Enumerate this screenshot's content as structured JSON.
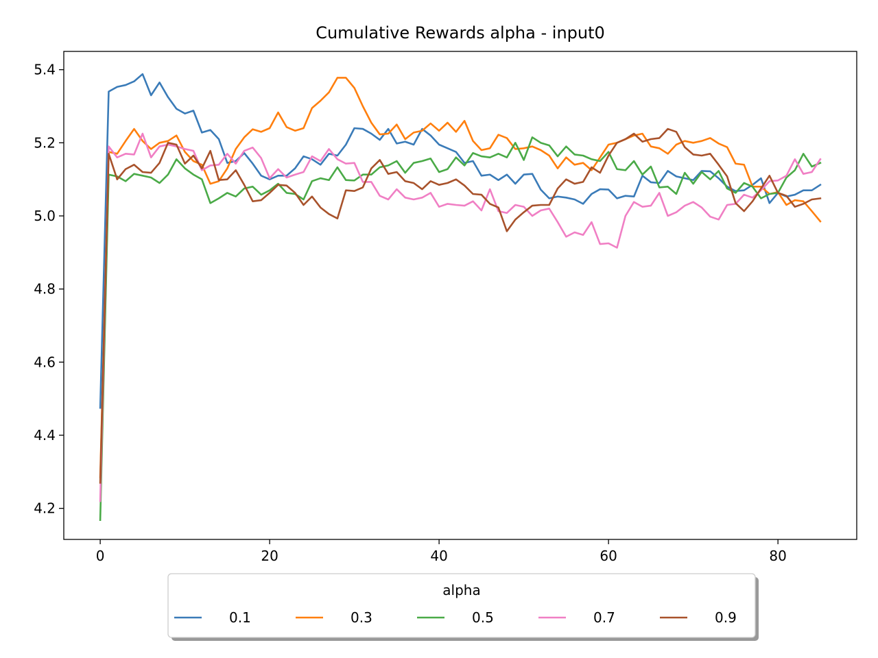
{
  "chart_data": {
    "type": "line",
    "title": "Cumulative Rewards alpha - input0",
    "xlabel": "",
    "ylabel": "",
    "xlim": [
      -4.3,
      89.3
    ],
    "ylim": [
      4.115,
      5.45
    ],
    "x_ticks": [
      0,
      20,
      40,
      60,
      80
    ],
    "y_ticks": [
      4.2,
      4.4,
      4.6,
      4.8,
      5.0,
      5.2,
      5.4
    ],
    "x_tick_labels": [
      "0",
      "20",
      "40",
      "60",
      "80"
    ],
    "y_tick_labels": [
      "4.2",
      "4.4",
      "4.6",
      "4.8",
      "5.0",
      "5.2",
      "5.4"
    ],
    "grid": false,
    "legend": {
      "title": "alpha",
      "placement": "bottom-center",
      "columns": 5
    },
    "x": [
      0,
      1,
      2,
      3,
      4,
      5,
      6,
      7,
      8,
      9,
      10,
      11,
      12,
      13,
      14,
      15,
      16,
      17,
      18,
      19,
      20,
      21,
      22,
      23,
      24,
      25,
      26,
      27,
      28,
      29,
      30,
      31,
      32,
      33,
      34,
      35,
      36,
      37,
      38,
      39,
      40,
      41,
      42,
      43,
      44,
      45,
      46,
      47,
      48,
      49,
      50,
      51,
      52,
      53,
      54,
      55,
      56,
      57,
      58,
      59,
      60,
      61,
      62,
      63,
      64,
      65,
      66,
      67,
      68,
      69,
      70,
      71,
      72,
      73,
      74,
      75,
      76,
      77,
      78,
      79,
      80,
      81,
      82,
      83,
      84,
      85
    ],
    "series": [
      {
        "name": "0.1",
        "color": "#3a7bb8",
        "values": [
          4.475,
          5.34,
          5.353,
          5.358,
          5.368,
          5.388,
          5.33,
          5.365,
          5.325,
          5.293,
          5.28,
          5.288,
          5.228,
          5.235,
          5.21,
          5.145,
          5.15,
          5.172,
          5.143,
          5.11,
          5.1,
          5.11,
          5.11,
          5.13,
          5.163,
          5.155,
          5.14,
          5.17,
          5.165,
          5.195,
          5.24,
          5.238,
          5.225,
          5.208,
          5.238,
          5.198,
          5.203,
          5.195,
          5.238,
          5.22,
          5.195,
          5.185,
          5.175,
          5.145,
          5.15,
          5.11,
          5.113,
          5.098,
          5.113,
          5.088,
          5.113,
          5.115,
          5.072,
          5.048,
          5.053,
          5.05,
          5.045,
          5.033,
          5.06,
          5.073,
          5.072,
          5.048,
          5.055,
          5.053,
          5.11,
          5.092,
          5.09,
          5.123,
          5.108,
          5.103,
          5.098,
          5.123,
          5.122,
          5.103,
          5.08,
          5.068,
          5.07,
          5.085,
          5.103,
          5.035,
          5.063,
          5.053,
          5.058,
          5.07,
          5.07,
          5.085
        ]
      },
      {
        "name": "0.3",
        "color": "#ff7f0e",
        "values": [
          4.285,
          5.175,
          5.17,
          5.205,
          5.238,
          5.205,
          5.183,
          5.2,
          5.205,
          5.22,
          5.175,
          5.15,
          5.14,
          5.088,
          5.095,
          5.13,
          5.183,
          5.215,
          5.237,
          5.23,
          5.24,
          5.283,
          5.243,
          5.233,
          5.24,
          5.295,
          5.315,
          5.338,
          5.378,
          5.378,
          5.35,
          5.3,
          5.255,
          5.223,
          5.225,
          5.25,
          5.21,
          5.228,
          5.233,
          5.253,
          5.233,
          5.255,
          5.23,
          5.26,
          5.205,
          5.18,
          5.185,
          5.222,
          5.213,
          5.183,
          5.185,
          5.19,
          5.18,
          5.165,
          5.13,
          5.16,
          5.14,
          5.145,
          5.125,
          5.16,
          5.195,
          5.2,
          5.21,
          5.22,
          5.225,
          5.19,
          5.185,
          5.17,
          5.195,
          5.205,
          5.2,
          5.205,
          5.213,
          5.198,
          5.188,
          5.143,
          5.14,
          5.08,
          5.08,
          5.06,
          5.065,
          5.03,
          5.043,
          5.04,
          5.013,
          4.985
        ]
      },
      {
        "name": "0.5",
        "color": "#4aaa47",
        "values": [
          4.168,
          5.113,
          5.108,
          5.095,
          5.115,
          5.11,
          5.105,
          5.09,
          5.113,
          5.155,
          5.13,
          5.113,
          5.1,
          5.035,
          5.048,
          5.063,
          5.053,
          5.075,
          5.08,
          5.058,
          5.07,
          5.088,
          5.063,
          5.06,
          5.045,
          5.095,
          5.103,
          5.098,
          5.133,
          5.098,
          5.097,
          5.113,
          5.113,
          5.133,
          5.138,
          5.15,
          5.118,
          5.145,
          5.15,
          5.157,
          5.12,
          5.128,
          5.16,
          5.138,
          5.172,
          5.163,
          5.16,
          5.17,
          5.16,
          5.2,
          5.153,
          5.215,
          5.2,
          5.193,
          5.163,
          5.19,
          5.168,
          5.165,
          5.155,
          5.15,
          5.175,
          5.128,
          5.125,
          5.15,
          5.113,
          5.135,
          5.078,
          5.08,
          5.06,
          5.118,
          5.088,
          5.12,
          5.1,
          5.123,
          5.075,
          5.063,
          5.09,
          5.08,
          5.048,
          5.06,
          5.063,
          5.105,
          5.125,
          5.17,
          5.135,
          5.145
        ]
      },
      {
        "name": "0.7",
        "color": "#f07fc4",
        "values": [
          4.22,
          5.19,
          5.16,
          5.17,
          5.168,
          5.225,
          5.16,
          5.19,
          5.195,
          5.19,
          5.183,
          5.178,
          5.125,
          5.138,
          5.14,
          5.17,
          5.143,
          5.178,
          5.187,
          5.158,
          5.103,
          5.128,
          5.105,
          5.113,
          5.12,
          5.163,
          5.15,
          5.183,
          5.155,
          5.143,
          5.145,
          5.093,
          5.093,
          5.055,
          5.045,
          5.073,
          5.05,
          5.045,
          5.05,
          5.063,
          5.025,
          5.033,
          5.03,
          5.028,
          5.04,
          5.015,
          5.073,
          5.013,
          5.008,
          5.03,
          5.025,
          5.0,
          5.015,
          5.02,
          4.983,
          4.943,
          4.955,
          4.948,
          4.983,
          4.923,
          4.925,
          4.913,
          5.0,
          5.038,
          5.025,
          5.028,
          5.063,
          5.0,
          5.01,
          5.028,
          5.038,
          5.023,
          4.998,
          4.99,
          5.03,
          5.033,
          5.058,
          5.05,
          5.07,
          5.095,
          5.097,
          5.11,
          5.155,
          5.115,
          5.12,
          5.155
        ]
      },
      {
        "name": "0.9",
        "color": "#a8522b",
        "values": [
          4.27,
          5.17,
          5.1,
          5.128,
          5.14,
          5.12,
          5.118,
          5.145,
          5.2,
          5.195,
          5.143,
          5.165,
          5.13,
          5.178,
          5.098,
          5.1,
          5.125,
          5.085,
          5.04,
          5.043,
          5.063,
          5.085,
          5.083,
          5.063,
          5.03,
          5.053,
          5.023,
          5.005,
          4.993,
          5.07,
          5.068,
          5.078,
          5.13,
          5.153,
          5.115,
          5.12,
          5.095,
          5.09,
          5.073,
          5.095,
          5.085,
          5.09,
          5.1,
          5.083,
          5.06,
          5.058,
          5.033,
          5.023,
          4.958,
          4.99,
          5.01,
          5.028,
          5.03,
          5.03,
          5.075,
          5.1,
          5.088,
          5.093,
          5.133,
          5.118,
          5.165,
          5.2,
          5.21,
          5.225,
          5.203,
          5.21,
          5.213,
          5.238,
          5.23,
          5.188,
          5.168,
          5.165,
          5.17,
          5.14,
          5.108,
          5.035,
          5.013,
          5.04,
          5.075,
          5.11,
          5.063,
          5.055,
          5.025,
          5.033,
          5.045,
          5.048
        ]
      }
    ]
  }
}
